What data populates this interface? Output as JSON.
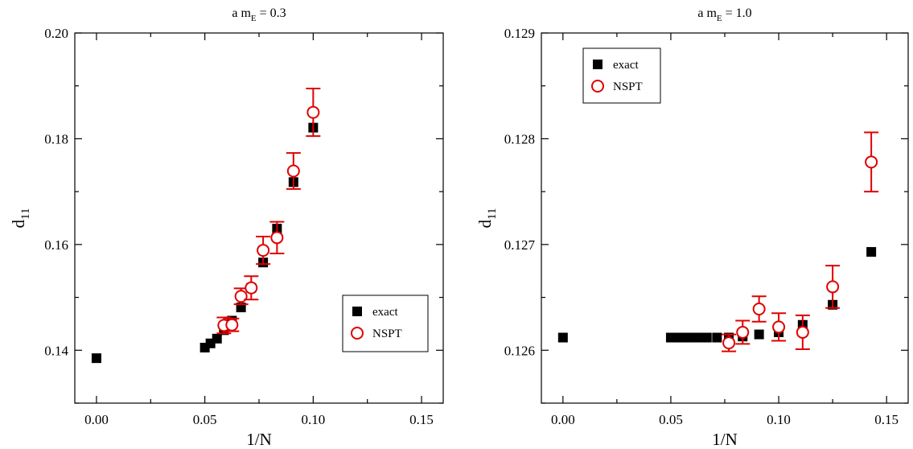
{
  "chart_data": [
    {
      "type": "scatter",
      "title": "a m",
      "title_sub": "E",
      "title_tail": " = 0.3",
      "xlabel": "1/N",
      "ylabel": "d",
      "ylabel_sub": "11",
      "xlim": [
        -0.01,
        0.16
      ],
      "ylim": [
        0.13,
        0.2
      ],
      "xticks": [
        0.0,
        0.05,
        0.1,
        0.15
      ],
      "xtick_labels": [
        "0.00",
        "0.05",
        "0.10",
        "0.15"
      ],
      "yticks": [
        0.14,
        0.16,
        0.18,
        0.2
      ],
      "ytick_labels": [
        "0.14",
        "0.16",
        "0.18",
        "0.20"
      ],
      "legend_position": "bottom-right",
      "series": [
        {
          "name": "exact",
          "marker": "filled-square",
          "color": "#000000",
          "x": [
            0.0,
            0.05,
            0.0526,
            0.0556,
            0.0588,
            0.0625,
            0.0667,
            0.0714,
            0.0769,
            0.0833,
            0.0909,
            0.1
          ],
          "y": [
            0.1385,
            0.1405,
            0.1413,
            0.1422,
            0.1438,
            0.1456,
            0.1481,
            0.1518,
            0.1566,
            0.163,
            0.1718,
            0.1821
          ]
        },
        {
          "name": "NSPT",
          "marker": "open-circle",
          "color": "#e00000",
          "x": [
            0.0588,
            0.0625,
            0.0667,
            0.0714,
            0.0769,
            0.0833,
            0.0909,
            0.1
          ],
          "y": [
            0.1447,
            0.1448,
            0.1502,
            0.1518,
            0.1589,
            0.1613,
            0.1739,
            0.185
          ],
          "yerr": [
            0.0015,
            0.0012,
            0.0015,
            0.0022,
            0.0026,
            0.003,
            0.0034,
            0.0045
          ]
        }
      ]
    },
    {
      "type": "scatter",
      "title": "a m",
      "title_sub": "E",
      "title_tail": " = 1.0",
      "xlabel": "1/N",
      "ylabel": "d",
      "ylabel_sub": "11",
      "xlim": [
        -0.01,
        0.16
      ],
      "ylim": [
        0.1255,
        0.129
      ],
      "xticks": [
        0.0,
        0.05,
        0.1,
        0.15
      ],
      "xtick_labels": [
        "0.00",
        "0.05",
        "0.10",
        "0.15"
      ],
      "yticks": [
        0.126,
        0.127,
        0.128,
        0.129
      ],
      "ytick_labels": [
        "0.126",
        "0.127",
        "0.128",
        "0.129"
      ],
      "legend_position": "top-left",
      "series": [
        {
          "name": "exact",
          "marker": "filled-square",
          "color": "#000000",
          "x": [
            0.0,
            0.05,
            0.0526,
            0.0556,
            0.0588,
            0.0625,
            0.0667,
            0.0714,
            0.0769,
            0.0833,
            0.0909,
            0.1,
            0.1111,
            0.125,
            0.1429
          ],
          "y": [
            0.12612,
            0.12612,
            0.12612,
            0.12612,
            0.12612,
            0.12612,
            0.12612,
            0.12612,
            0.12612,
            0.12613,
            0.12615,
            0.12617,
            0.12624,
            0.12643,
            0.12693
          ]
        },
        {
          "name": "NSPT",
          "marker": "open-circle",
          "color": "#e00000",
          "x": [
            0.0769,
            0.0833,
            0.0909,
            0.1,
            0.1111,
            0.125,
            0.1429
          ],
          "y": [
            0.12607,
            0.12617,
            0.12639,
            0.12622,
            0.12617,
            0.1266,
            0.12778
          ],
          "yerr": [
            8e-05,
            0.00011,
            0.00012,
            0.00013,
            0.00016,
            0.0002,
            0.00028
          ]
        }
      ]
    }
  ]
}
